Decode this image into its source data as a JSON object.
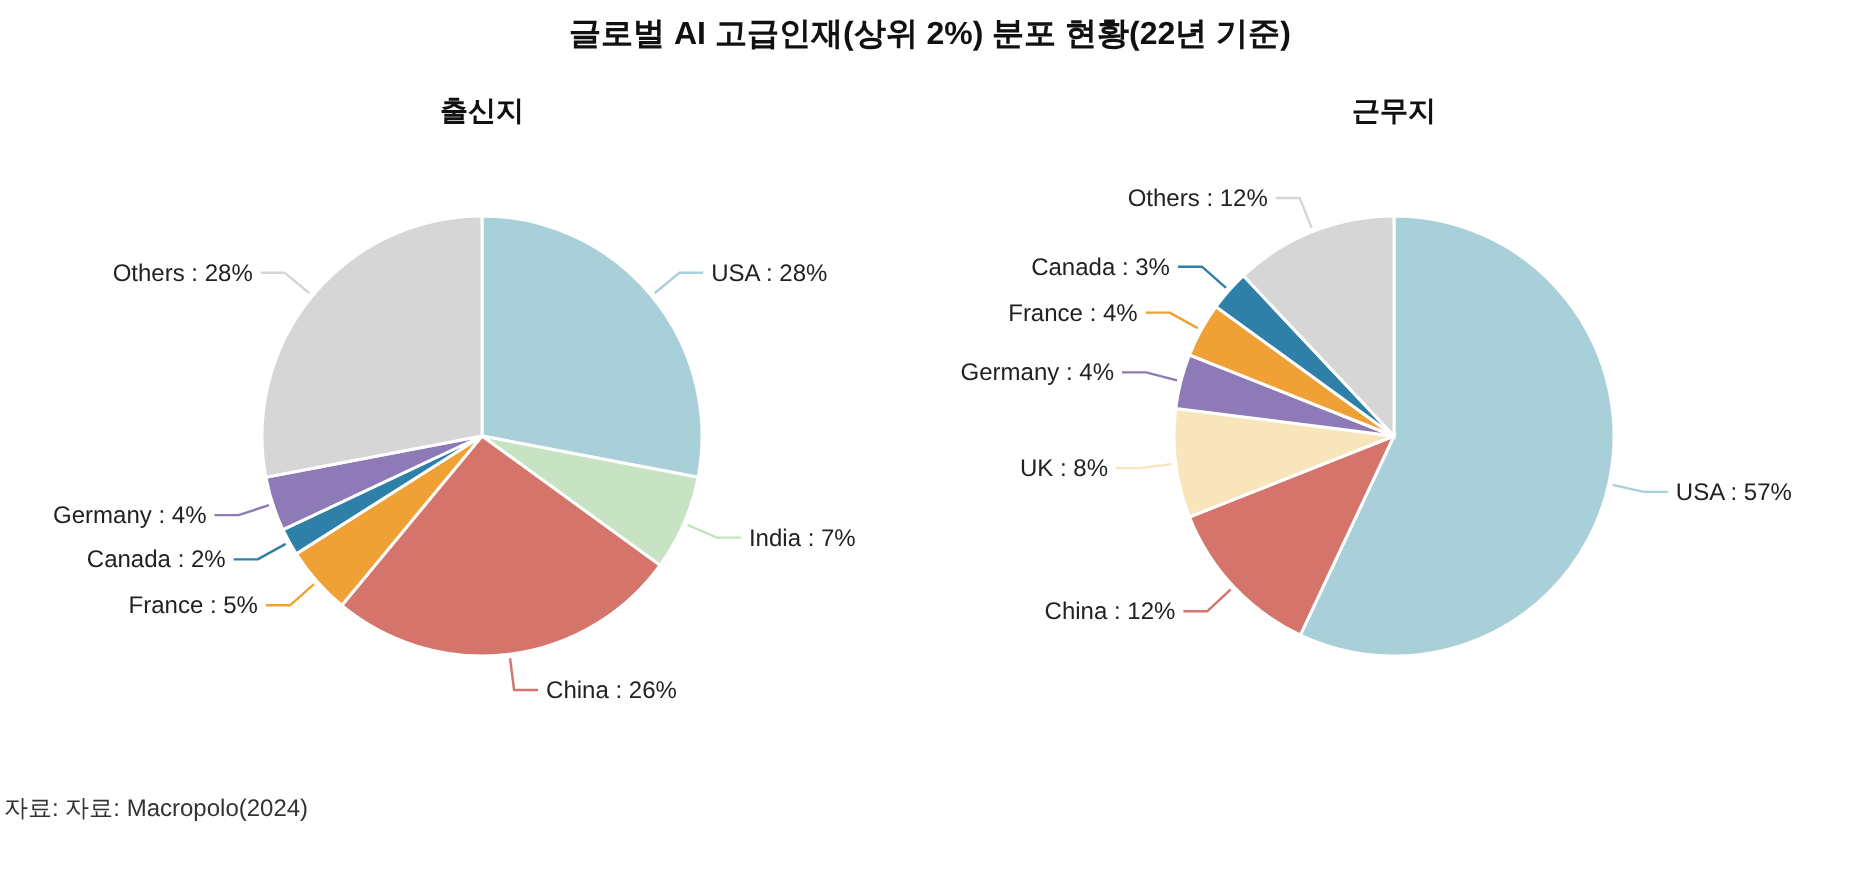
{
  "chart_data": [
    {
      "type": "pie",
      "title": "글로벌 AI 고급인재(상위 2%) 분포 현황(22년 기준)",
      "subtitle": "출신지",
      "categories": [
        "USA",
        "India",
        "China",
        "France",
        "Canada",
        "Germany",
        "Others"
      ],
      "values": [
        28,
        7,
        26,
        5,
        2,
        4,
        28
      ],
      "colors": [
        "#a9d0d9",
        "#c7e3c4",
        "#d5746a",
        "#f0a135",
        "#2f80a9",
        "#8e7ab6",
        "#d6d6d6"
      ],
      "value_labels": [
        ": 28%",
        ": 7%",
        ": 26%",
        ": 5%",
        ": 2%",
        ": 4%",
        ": 28%"
      ],
      "annotations": [
        "자료: 자료: Macropolo(2024)"
      ]
    },
    {
      "type": "pie",
      "subtitle": "근무지",
      "categories": [
        "USA",
        "China",
        "UK",
        "Germany",
        "France",
        "Canada",
        "Others"
      ],
      "values": [
        57,
        12,
        8,
        4,
        4,
        3,
        12
      ],
      "colors": [
        "#a9d0d9",
        "#d5746a",
        "#f8e5bb",
        "#8e7ab6",
        "#f0a135",
        "#2f80a9",
        "#d6d6d6"
      ],
      "value_labels": [
        ": 57%",
        ": 12%",
        ": 8%",
        ": 4%",
        ": 4%",
        ": 3%",
        ": 12%"
      ]
    }
  ]
}
